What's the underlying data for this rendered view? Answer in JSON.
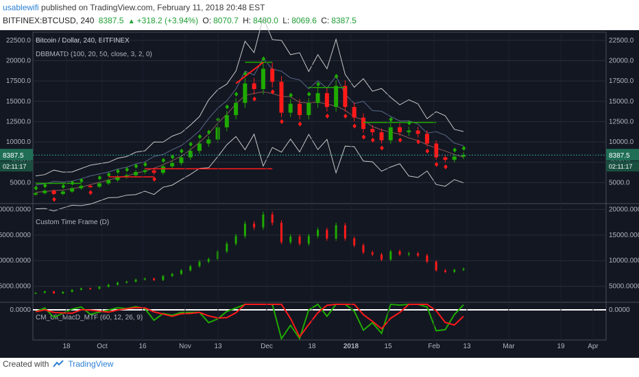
{
  "header": {
    "author": "usablewifi",
    "published": " published on TradingView.com, February 11, 2018 20:48 EST",
    "symbol": "BITFINEX:BTCUSD, 240",
    "last": "8387.5",
    "change": "+318.2 (+3.94%)",
    "o_label": "O:",
    "o_value": "8070.7",
    "h_label": "H:",
    "h_value": "8480.0",
    "l_label": "L:",
    "l_value": "8069.6",
    "c_label": "C:",
    "c_value": "8387.5"
  },
  "footer": {
    "created": "Created with",
    "brand": "TradingView",
    "logo_icon": "tradingview-logo-icon"
  },
  "colors": {
    "bg": "#131722",
    "bull": "#1faa00",
    "bear": "#ff1a1a",
    "band": "#c8c8c8",
    "accent": "#2a7fd4"
  },
  "chart_data": [
    {
      "type": "candlestick",
      "title": "Bitcoin / Dollar, 240, BITFINEX",
      "indicator": "DBBMATD (100, 20, 50, close, 3, 2, 0)",
      "y_ticks": [
        5000.0,
        7500.0,
        10000.0,
        12500.0,
        15000.0,
        17500.0,
        20000.0,
        22500.0
      ],
      "y_tick_labels": [
        "5000.0",
        "7500.0",
        "10000.0",
        "12500.0",
        "15000.0",
        "17500.0",
        "20000.0",
        "22500.0"
      ],
      "ylim": [
        2500,
        23500
      ],
      "last_price_label": "8387.5",
      "countdown_label": "02:11:17",
      "x_tick_labels": [
        "18",
        "Oct",
        "16",
        "Nov",
        "13",
        "Dec",
        "18",
        "2018",
        "15",
        "Feb",
        "13",
        "Mar",
        "19",
        "Apr"
      ],
      "close_series": [
        3700,
        4000,
        3600,
        3900,
        4300,
        4600,
        4500,
        4900,
        5300,
        5700,
        5900,
        6300,
        6500,
        6200,
        7000,
        7400,
        8100,
        8900,
        9800,
        10300,
        11800,
        13300,
        14800,
        17200,
        16500,
        19000,
        17400,
        13600,
        14700,
        13300,
        14800,
        16000,
        14300,
        16900,
        14300,
        13000,
        11600,
        11200,
        10200,
        11800,
        11200,
        11400,
        11000,
        9800,
        8100,
        7800,
        8200,
        8400
      ],
      "horizontal_levels": [
        {
          "value": 19800,
          "color": "#1faa00"
        },
        {
          "value": 16700,
          "color": "#1faa00"
        },
        {
          "value": 12400,
          "color": "#1faa00"
        },
        {
          "value": 6700,
          "color": "#ff1a1a"
        },
        {
          "value": 4900,
          "color": "#1faa00"
        },
        {
          "value": 5700,
          "color": "#ff1a1a"
        }
      ],
      "trendline": {
        "from": 17200,
        "to": 19800,
        "color": "#ff1a1a"
      }
    },
    {
      "type": "candlestick",
      "title": "Custom Time Frame (D)",
      "y_ticks": [
        5000,
        10000,
        15000,
        20000
      ],
      "y_tick_labels": [
        "5000.0000",
        "10000.0000",
        "15000.0000",
        "20000.0000"
      ],
      "ylim": [
        2000,
        21000
      ]
    },
    {
      "type": "line",
      "title": "CM_Ult_MacD_MTF (60, 12, 26, 9)",
      "y_tick_labels": [
        "0.0000"
      ],
      "zero_line": 0
    }
  ]
}
